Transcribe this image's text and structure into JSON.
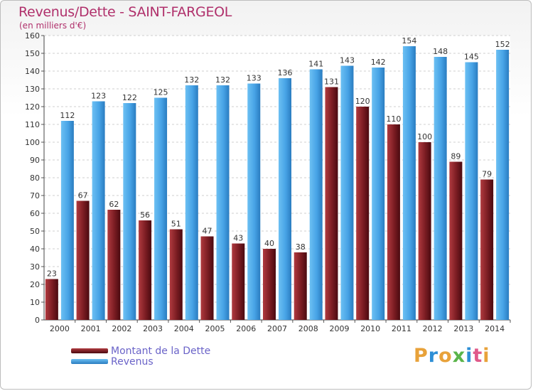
{
  "title": "Revenus/Dette - SAINT-FARGEOL",
  "subtitle": "(en milliers d'€)",
  "brand": "Proxiti",
  "colors": {
    "dette": "#7a1c22",
    "revenus": "#47a3e6",
    "title": "#b0306b",
    "legend": "#6a63c8"
  },
  "chart_data": {
    "type": "bar",
    "categories": [
      "2000",
      "2001",
      "2002",
      "2003",
      "2004",
      "2005",
      "2006",
      "2007",
      "2008",
      "2009",
      "2010",
      "2011",
      "2012",
      "2013",
      "2014"
    ],
    "series": [
      {
        "name": "Montant de la Dette",
        "values": [
          23,
          67,
          62,
          56,
          51,
          47,
          43,
          40,
          38,
          131,
          120,
          110,
          100,
          89,
          79
        ]
      },
      {
        "name": "Revenus",
        "values": [
          112,
          123,
          122,
          125,
          132,
          132,
          133,
          136,
          141,
          143,
          142,
          154,
          148,
          145,
          152
        ]
      }
    ],
    "ylim": [
      0,
      160
    ],
    "yticks": [
      0,
      10,
      20,
      30,
      40,
      50,
      60,
      70,
      80,
      90,
      100,
      110,
      120,
      130,
      140,
      150,
      160
    ],
    "grid": true,
    "legend": "bottom-left"
  }
}
